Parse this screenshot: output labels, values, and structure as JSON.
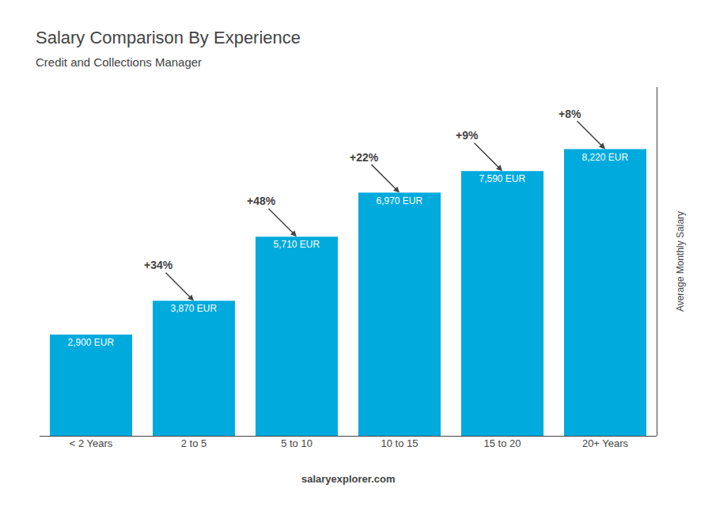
{
  "chart_data": {
    "type": "bar",
    "title": "Salary Comparison By Experience",
    "subtitle": "Credit and Collections Manager",
    "categories": [
      "< 2 Years",
      "2 to 5",
      "5 to 10",
      "10 to 15",
      "15 to 20",
      "20+ Years"
    ],
    "values": [
      2900,
      3870,
      5710,
      6970,
      7590,
      8220
    ],
    "value_labels": [
      "2,900 EUR",
      "3,870 EUR",
      "5,710 EUR",
      "6,970 EUR",
      "7,590 EUR",
      "8,220 EUR"
    ],
    "data_labels": true,
    "annotations": [
      null,
      "+34%",
      "+48%",
      "+22%",
      "+9%",
      "+8%"
    ],
    "y_label": "Average Monthly Salary",
    "footer": "salaryexplorer.com",
    "color": "#00aadd",
    "ylim": [
      0,
      10000
    ],
    "grid": false,
    "tick_labels": "x"
  }
}
